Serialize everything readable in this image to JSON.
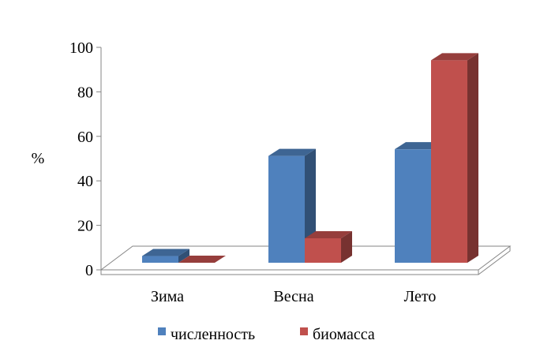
{
  "chart_data": {
    "type": "bar",
    "style": "3d-clustered-column",
    "categories": [
      "Зима",
      "Весна",
      "Лето"
    ],
    "series": [
      {
        "name": "численность",
        "values": [
          3,
          48,
          51
        ],
        "color": "#4F81BD"
      },
      {
        "name": "биомасса",
        "values": [
          0,
          11,
          91
        ],
        "color": "#C0504D"
      }
    ],
    "ylabel": "%",
    "ylim": [
      0,
      100
    ],
    "yticks": [
      0,
      20,
      40,
      60,
      80,
      100
    ],
    "grid": false,
    "legend_position": "bottom"
  }
}
